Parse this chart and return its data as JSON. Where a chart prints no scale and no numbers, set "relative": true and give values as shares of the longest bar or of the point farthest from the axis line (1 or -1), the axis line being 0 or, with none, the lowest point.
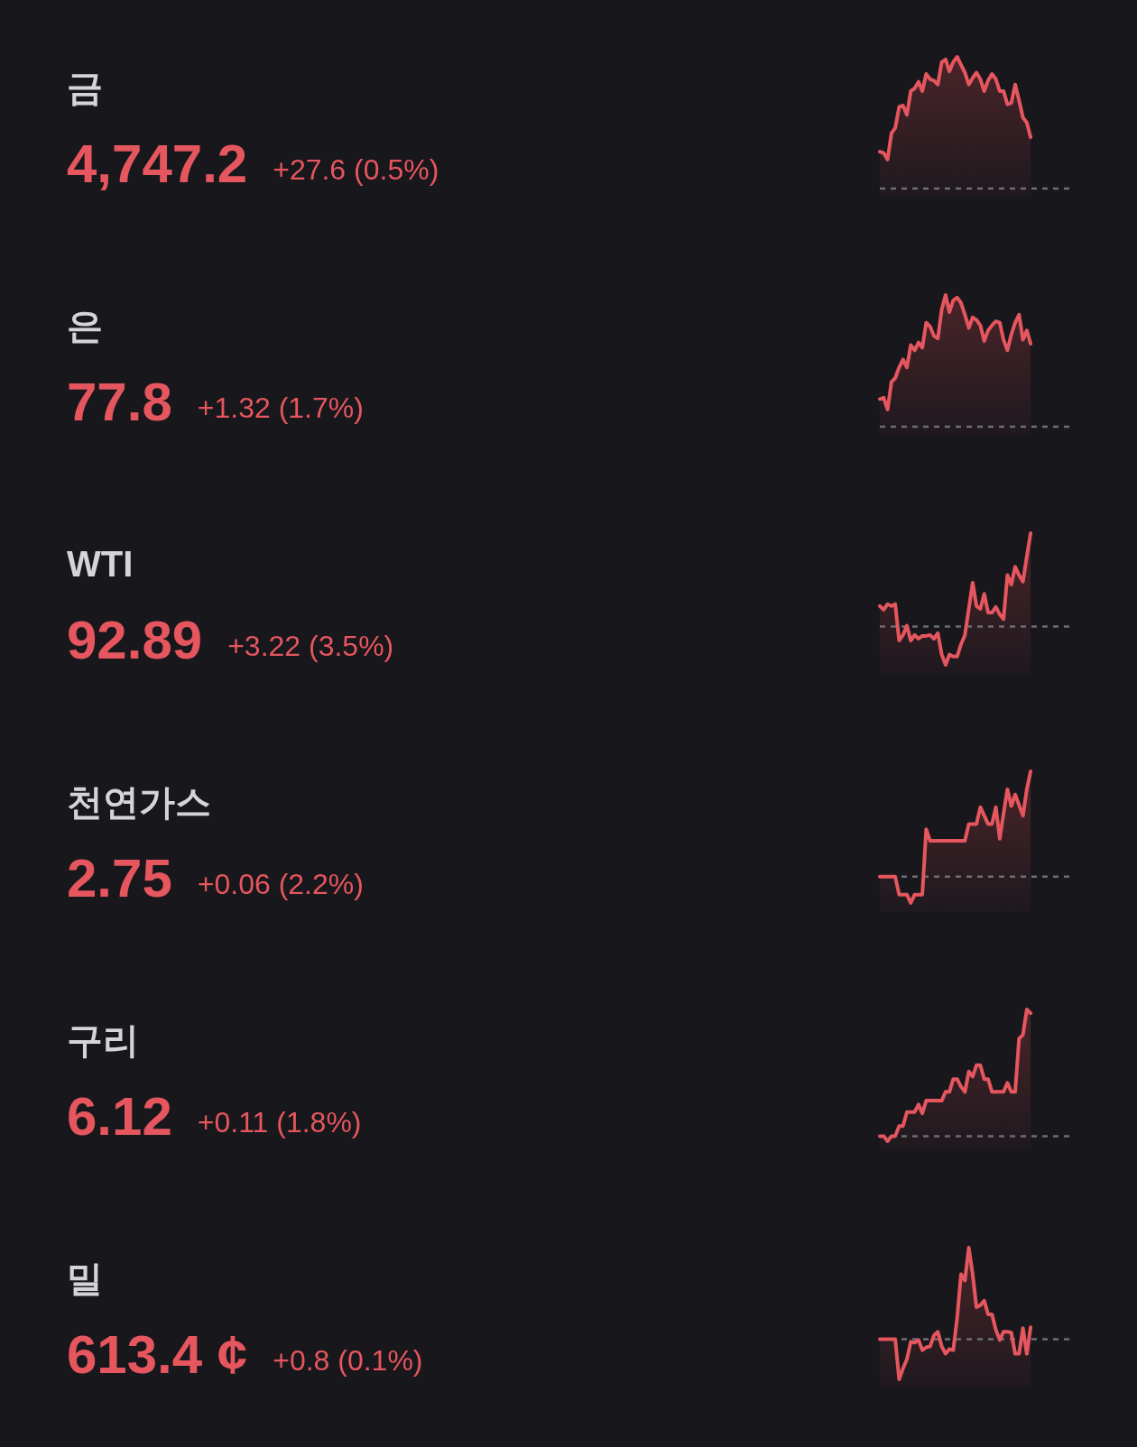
{
  "chart_data": [
    {
      "type": "area",
      "annotations": [
        "금",
        "4,747.2",
        "+27.6 (0.5%)"
      ],
      "relative": true,
      "color": "#e5565e",
      "categories": [
        null,
        null,
        null,
        null,
        null,
        null,
        null,
        null,
        null,
        null,
        null,
        null,
        null,
        null,
        null,
        null,
        null,
        null,
        null,
        null,
        null,
        null,
        null,
        null,
        null,
        null,
        null,
        null,
        null,
        null,
        null,
        null,
        null,
        null,
        null,
        null,
        null,
        null,
        null,
        null,
        null,
        null,
        null,
        null,
        null,
        null,
        null,
        null,
        null,
        null
      ],
      "values": [
        0.28,
        0.27,
        0.22,
        0.42,
        0.46,
        0.62,
        0.63,
        0.56,
        0.74,
        0.76,
        0.81,
        0.74,
        0.87,
        0.83,
        0.82,
        0.79,
        0.96,
        0.98,
        0.89,
        0.96,
        1.0,
        0.94,
        0.88,
        0.79,
        0.84,
        0.88,
        0.83,
        0.74,
        0.82,
        0.87,
        0.83,
        0.74,
        0.74,
        0.64,
        0.65,
        0.79,
        0.67,
        0.54,
        0.5,
        0.39,
        null,
        null,
        null,
        null,
        null,
        null,
        null,
        null,
        null,
        null
      ],
      "ref_lines": [
        {
          "axis": "y",
          "value": 0,
          "color": "#6e6e74",
          "line_style": "dotted"
        }
      ]
    },
    {
      "type": "area",
      "annotations": [
        "은",
        "77.8",
        "+1.32 (1.7%)"
      ],
      "relative": true,
      "color": "#e5565e",
      "categories": [
        null,
        null,
        null,
        null,
        null,
        null,
        null,
        null,
        null,
        null,
        null,
        null,
        null,
        null,
        null,
        null,
        null,
        null,
        null,
        null,
        null,
        null,
        null,
        null,
        null,
        null,
        null,
        null,
        null,
        null,
        null,
        null,
        null,
        null,
        null,
        null,
        null,
        null,
        null,
        null,
        null,
        null,
        null,
        null,
        null,
        null,
        null,
        null,
        null,
        null
      ],
      "values": [
        0.21,
        0.22,
        0.13,
        0.34,
        0.37,
        0.45,
        0.51,
        0.45,
        0.62,
        0.58,
        0.64,
        0.6,
        0.79,
        0.76,
        0.69,
        0.67,
        0.89,
        1.0,
        0.87,
        0.96,
        0.98,
        0.94,
        0.85,
        0.75,
        0.83,
        0.81,
        0.77,
        0.65,
        0.73,
        0.77,
        0.8,
        0.79,
        0.66,
        0.58,
        0.7,
        0.79,
        0.85,
        0.66,
        0.73,
        0.63,
        null,
        null,
        null,
        null,
        null,
        null,
        null,
        null,
        null,
        null
      ],
      "ref_lines": [
        {
          "axis": "y",
          "value": 0,
          "color": "#6e6e74",
          "line_style": "dotted"
        }
      ]
    },
    {
      "type": "area",
      "annotations": [
        "WTI",
        "92.89",
        "+3.22 (3.5%)"
      ],
      "relative": true,
      "color": "#e5565e",
      "categories": [
        null,
        null,
        null,
        null,
        null,
        null,
        null,
        null,
        null,
        null,
        null,
        null,
        null,
        null,
        null,
        null,
        null,
        null,
        null,
        null,
        null,
        null,
        null,
        null,
        null,
        null,
        null,
        null,
        null,
        null,
        null,
        null,
        null,
        null,
        null,
        null,
        null,
        null,
        null,
        null,
        null,
        null,
        null,
        null,
        null,
        null,
        null,
        null,
        null,
        null
      ],
      "values": [
        0.22,
        0.18,
        0.24,
        0.22,
        0.24,
        -0.15,
        -0.09,
        0.01,
        -0.15,
        -0.09,
        -0.13,
        -0.1,
        -0.1,
        -0.09,
        -0.13,
        -0.07,
        -0.3,
        -0.41,
        -0.3,
        -0.32,
        -0.32,
        -0.19,
        -0.09,
        0.19,
        0.47,
        0.22,
        0.19,
        0.35,
        0.15,
        0.15,
        0.21,
        0.13,
        0.08,
        0.55,
        0.45,
        0.64,
        0.55,
        0.48,
        0.75,
        1.0,
        null,
        null,
        null,
        null,
        null,
        null,
        null,
        null,
        null,
        null
      ],
      "ref_lines": [
        {
          "axis": "y",
          "value": 0,
          "color": "#6e6e74",
          "line_style": "dotted"
        }
      ]
    },
    {
      "type": "area",
      "annotations": [
        "천연가스",
        "2.75",
        "+0.06 (2.2%)"
      ],
      "relative": true,
      "color": "#e5565e",
      "categories": [
        null,
        null,
        null,
        null,
        null,
        null,
        null,
        null,
        null,
        null,
        null,
        null,
        null,
        null,
        null,
        null,
        null,
        null,
        null,
        null,
        null,
        null,
        null,
        null,
        null,
        null,
        null,
        null,
        null,
        null,
        null,
        null,
        null,
        null,
        null,
        null,
        null,
        null,
        null,
        null,
        null,
        null,
        null,
        null,
        null,
        null,
        null,
        null,
        null,
        null
      ],
      "values": [
        0,
        0,
        0,
        0,
        0,
        -0.17,
        -0.17,
        -0.17,
        -0.25,
        -0.17,
        -0.17,
        -0.17,
        0.45,
        0.34,
        0.34,
        0.34,
        0.34,
        0.34,
        0.34,
        0.34,
        0.34,
        0.34,
        0.34,
        0.5,
        0.5,
        0.5,
        0.66,
        0.58,
        0.5,
        0.5,
        0.66,
        0.36,
        0.6,
        0.83,
        0.67,
        0.78,
        0.68,
        0.58,
        0.83,
        1.0,
        null,
        null,
        null,
        null,
        null,
        null,
        null,
        null,
        null,
        null
      ],
      "ref_lines": [
        {
          "axis": "y",
          "value": 0,
          "color": "#6e6e74",
          "line_style": "dotted"
        }
      ]
    },
    {
      "type": "area",
      "annotations": [
        "구리",
        "6.12",
        "+0.11 (1.8%)"
      ],
      "relative": true,
      "color": "#e5565e",
      "categories": [
        null,
        null,
        null,
        null,
        null,
        null,
        null,
        null,
        null,
        null,
        null,
        null,
        null,
        null,
        null,
        null,
        null,
        null,
        null,
        null,
        null,
        null,
        null,
        null,
        null,
        null,
        null,
        null,
        null,
        null,
        null,
        null,
        null,
        null,
        null,
        null,
        null,
        null,
        null,
        null,
        null,
        null,
        null,
        null,
        null,
        null,
        null,
        null,
        null,
        null
      ],
      "values": [
        0,
        0,
        -0.04,
        0,
        0,
        0.08,
        0.08,
        0.19,
        0.19,
        0.19,
        0.25,
        0.18,
        0.28,
        0.28,
        0.28,
        0.28,
        0.28,
        0.35,
        0.35,
        0.45,
        0.45,
        0.39,
        0.35,
        0.51,
        0.47,
        0.56,
        0.56,
        0.45,
        0.45,
        0.35,
        0.35,
        0.35,
        0.35,
        0.42,
        0.35,
        0.35,
        0.77,
        0.8,
        1.0,
        0.97,
        null,
        null,
        null,
        null,
        null,
        null,
        null,
        null,
        null,
        null
      ],
      "ref_lines": [
        {
          "axis": "y",
          "value": 0,
          "color": "#6e6e74",
          "line_style": "dotted"
        }
      ]
    },
    {
      "type": "area",
      "annotations": [
        "밀",
        "613.4 ¢",
        "+0.8 (0.1%)"
      ],
      "relative": true,
      "color": "#e5565e",
      "categories": [
        null,
        null,
        null,
        null,
        null,
        null,
        null,
        null,
        null,
        null,
        null,
        null,
        null,
        null,
        null,
        null,
        null,
        null,
        null,
        null,
        null,
        null,
        null,
        null,
        null,
        null,
        null,
        null,
        null,
        null,
        null,
        null,
        null,
        null,
        null,
        null,
        null,
        null,
        null,
        null,
        null,
        null,
        null,
        null,
        null,
        null,
        null,
        null,
        null,
        null
      ],
      "values": [
        0,
        0,
        0,
        0,
        0,
        -0.44,
        -0.32,
        -0.22,
        -0.03,
        -0.04,
        -0.01,
        -0.12,
        -0.09,
        -0.08,
        0.04,
        0.08,
        -0.08,
        -0.16,
        -0.11,
        -0.12,
        0.23,
        0.71,
        0.64,
        1.0,
        0.71,
        0.35,
        0.37,
        0.42,
        0.27,
        0.27,
        0.1,
        -0.01,
        0.08,
        0.08,
        0.07,
        -0.16,
        -0.16,
        0.12,
        -0.16,
        0.13,
        null,
        null,
        null,
        null,
        null,
        null,
        null,
        null,
        null,
        null
      ],
      "ref_lines": [
        {
          "axis": "y",
          "value": 0,
          "color": "#6e6e74",
          "line_style": "dotted"
        }
      ]
    }
  ]
}
